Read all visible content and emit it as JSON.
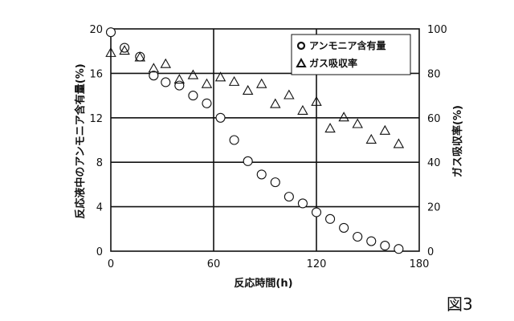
{
  "chart_data": {
    "type": "scatter",
    "xlabel": "反応時間(h)",
    "ylabel_left": "反応液中のアンモニア含有量(%)",
    "ylabel_right": "ガス吸収率(%)",
    "xlim": [
      0,
      180
    ],
    "ylim_left": [
      0,
      20
    ],
    "ylim_right": [
      0,
      100
    ],
    "x_ticks": [
      "0",
      "60",
      "120",
      "180"
    ],
    "y_left_ticks": [
      "0",
      "4",
      "8",
      "12",
      "16",
      "20"
    ],
    "y_right_ticks": [
      "0",
      "20",
      "40",
      "60",
      "80",
      "100"
    ],
    "grid": "horizontal lines at y=4,8,12,16; vertical lines at x=60,120",
    "legend_position": "top-right",
    "series": [
      {
        "name": "アンモニア含有量",
        "marker": "circle",
        "axis": "left",
        "x": [
          0,
          8,
          17,
          25,
          32,
          40,
          48,
          56,
          64,
          72,
          80,
          88,
          96,
          104,
          112,
          120,
          128,
          136,
          144,
          152,
          160,
          168
        ],
        "y": [
          19.7,
          18.3,
          17.5,
          15.8,
          15.2,
          14.9,
          14.0,
          13.3,
          12.0,
          10.0,
          8.1,
          6.9,
          6.2,
          4.9,
          4.3,
          3.5,
          2.9,
          2.1,
          1.3,
          0.9,
          0.5,
          0.2
        ]
      },
      {
        "name": "ガス吸収率",
        "marker": "triangle",
        "axis": "right",
        "x": [
          0,
          8,
          17,
          25,
          32,
          40,
          48,
          56,
          64,
          72,
          80,
          88,
          96,
          104,
          112,
          120,
          128,
          136,
          144,
          152,
          160,
          168
        ],
        "y": [
          89,
          90,
          87,
          82,
          84,
          77,
          79,
          75,
          78,
          76,
          72,
          75,
          66,
          70,
          63,
          67,
          55,
          60,
          57,
          50,
          54,
          48
        ]
      }
    ]
  },
  "figure_label": "図3"
}
